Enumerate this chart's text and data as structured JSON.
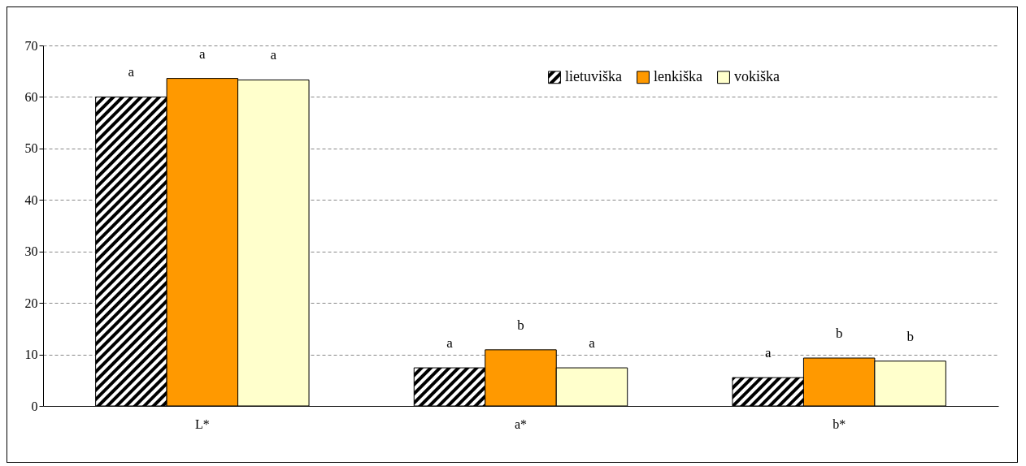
{
  "chart_data": {
    "type": "bar",
    "categories": [
      "L*",
      "a*",
      "b*"
    ],
    "series": [
      {
        "name": "lietuviška",
        "color": "#000000",
        "values": [
          60,
          7.4,
          5.5
        ]
      },
      {
        "name": "lenkiška",
        "color": "#ff9900",
        "values": [
          63.6,
          10.9,
          9.3
        ]
      },
      {
        "name": "vokiška",
        "color": "#ffffcc",
        "values": [
          63.3,
          7.4,
          8.7
        ]
      }
    ],
    "ylim": [
      0,
      70
    ],
    "yticks": [
      0,
      10,
      20,
      30,
      40,
      50,
      60,
      70
    ],
    "grid": "y",
    "legend": "top right",
    "annotations": [
      "a",
      "a",
      "a",
      "a",
      "b",
      "a",
      "a",
      "b",
      "b"
    ]
  }
}
